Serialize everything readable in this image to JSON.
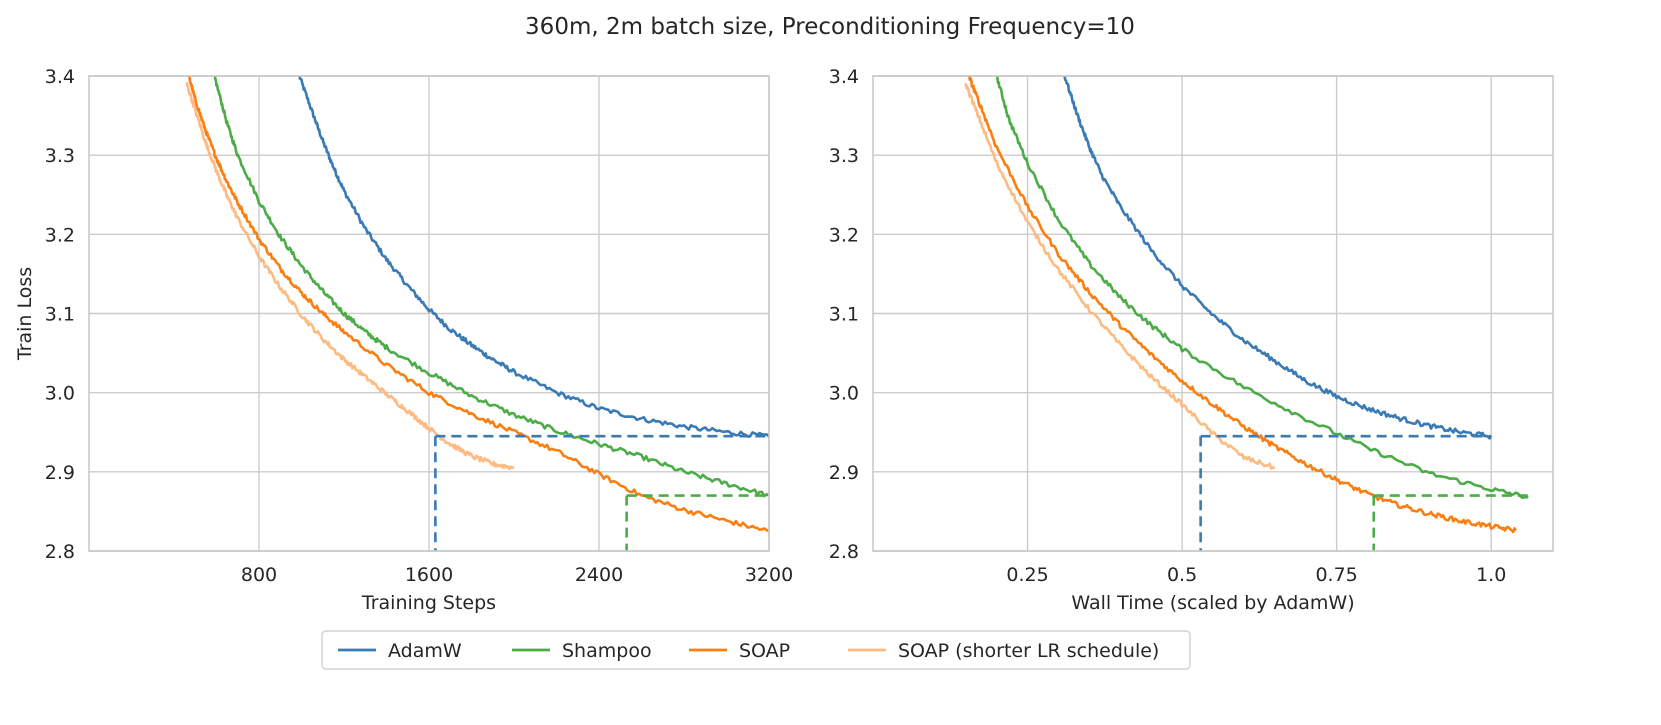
{
  "figure": {
    "title": "360m, 2m batch size, Preconditioning Frequency=10"
  },
  "colors": {
    "AdamW": "#3a7ab5",
    "Shampoo": "#4cac47",
    "SOAP": "#fb7e10",
    "SOAP (shorter LR schedule)": "#fdbb82",
    "grid": "#cccccc",
    "frame": "#c9c9c9"
  },
  "legend": {
    "items": [
      "AdamW",
      "Shampoo",
      "SOAP",
      "SOAP (shorter LR schedule)"
    ],
    "placement": "bottom-center"
  },
  "chart_data": [
    {
      "type": "line",
      "xlabel": "Training Steps",
      "ylabel": "Train Loss",
      "xlim": [
        0,
        3200
      ],
      "ylim": [
        2.8,
        3.4
      ],
      "xticks": [
        800,
        1600,
        2400,
        3200
      ],
      "xtick_labels": [
        "800",
        "1600",
        "2400",
        "3200"
      ],
      "yticks": [
        2.8,
        2.9,
        3.0,
        3.1,
        3.2,
        3.3,
        3.4
      ],
      "ytick_labels": [
        "2.8",
        "2.9",
        "3.0",
        "3.1",
        "3.2",
        "3.3",
        "3.4"
      ],
      "grid": true,
      "series": [
        {
          "name": "AdamW",
          "x": [
            990,
            1050,
            1100,
            1150,
            1200,
            1300,
            1400,
            1500,
            1600,
            1700,
            1800,
            1900,
            2000,
            2200,
            2400,
            2600,
            2800,
            3000,
            3200
          ],
          "y": [
            3.4,
            3.355,
            3.318,
            3.285,
            3.255,
            3.207,
            3.168,
            3.135,
            3.105,
            3.08,
            3.06,
            3.042,
            3.026,
            3.0,
            2.98,
            2.967,
            2.957,
            2.95,
            2.945
          ]
        },
        {
          "name": "Shampoo",
          "x": [
            590,
            650,
            700,
            800,
            900,
            1000,
            1100,
            1200,
            1300,
            1400,
            1600,
            1800,
            2000,
            2200,
            2400,
            2600,
            2800,
            3000,
            3200
          ],
          "y": [
            3.4,
            3.34,
            3.3,
            3.242,
            3.197,
            3.16,
            3.128,
            3.1,
            3.077,
            3.057,
            3.025,
            2.996,
            2.972,
            2.952,
            2.935,
            2.919,
            2.9,
            2.885,
            2.87
          ]
        },
        {
          "name": "SOAP",
          "x": [
            470,
            500,
            550,
            600,
            650,
            700,
            800,
            900,
            1000,
            1100,
            1200,
            1400,
            1600,
            1800,
            2000,
            2200,
            2400,
            2600,
            2800,
            3000,
            3200
          ],
          "y": [
            3.4,
            3.37,
            3.33,
            3.296,
            3.266,
            3.24,
            3.194,
            3.157,
            3.126,
            3.1,
            3.077,
            3.035,
            3.0,
            2.973,
            2.95,
            2.926,
            2.897,
            2.87,
            2.852,
            2.838,
            2.825
          ]
        },
        {
          "name": "SOAP (shorter LR schedule)",
          "x": [
            460,
            500,
            550,
            600,
            650,
            700,
            800,
            900,
            1000,
            1100,
            1200,
            1300,
            1400,
            1500,
            1600,
            1700,
            1800,
            1900,
            2000
          ],
          "y": [
            3.39,
            3.357,
            3.315,
            3.28,
            3.248,
            3.22,
            3.172,
            3.133,
            3.098,
            3.068,
            3.042,
            3.02,
            2.998,
            2.977,
            2.955,
            2.935,
            2.92,
            2.91,
            2.905
          ]
        }
      ],
      "reference_lines": [
        {
          "series": "AdamW",
          "x_start": 1630,
          "x_end": 3200,
          "y": 2.945
        },
        {
          "series": "Shampoo",
          "x_start": 2530,
          "x_end": 3200,
          "y": 2.87
        }
      ]
    },
    {
      "type": "line",
      "xlabel": "Wall Time (scaled by AdamW)",
      "ylabel": "",
      "xlim": [
        0,
        1.1
      ],
      "ylim": [
        2.8,
        3.4
      ],
      "xticks": [
        0.25,
        0.5,
        0.75,
        1.0
      ],
      "xtick_labels": [
        "0.25",
        "0.5",
        "0.75",
        "1.0"
      ],
      "yticks": [
        2.8,
        2.9,
        3.0,
        3.1,
        3.2,
        3.3,
        3.4
      ],
      "ytick_labels": [
        "2.8",
        "2.9",
        "3.0",
        "3.1",
        "3.2",
        "3.3",
        "3.4"
      ],
      "grid": true,
      "series": [
        {
          "name": "AdamW",
          "x": [
            0.31,
            0.33,
            0.35,
            0.37,
            0.4,
            0.45,
            0.5,
            0.55,
            0.6,
            0.65,
            0.7,
            0.75,
            0.8,
            0.85,
            0.9,
            0.95,
            1.0
          ],
          "y": [
            3.4,
            3.352,
            3.31,
            3.275,
            3.235,
            3.18,
            3.135,
            3.098,
            3.066,
            3.04,
            3.015,
            2.995,
            2.98,
            2.968,
            2.958,
            2.95,
            2.945
          ]
        },
        {
          "name": "Shampoo",
          "x": [
            0.2,
            0.22,
            0.25,
            0.3,
            0.35,
            0.4,
            0.45,
            0.5,
            0.6,
            0.7,
            0.8,
            0.9,
            1.0,
            1.06
          ],
          "y": [
            3.4,
            3.345,
            3.29,
            3.218,
            3.163,
            3.12,
            3.085,
            3.055,
            3.007,
            2.967,
            2.93,
            2.898,
            2.878,
            2.868
          ]
        },
        {
          "name": "SOAP",
          "x": [
            0.155,
            0.17,
            0.2,
            0.25,
            0.3,
            0.35,
            0.4,
            0.45,
            0.5,
            0.55,
            0.6,
            0.65,
            0.7,
            0.75,
            0.8,
            0.85,
            0.9,
            0.95,
            1.0,
            1.04
          ],
          "y": [
            3.4,
            3.37,
            3.31,
            3.235,
            3.175,
            3.127,
            3.085,
            3.048,
            3.015,
            2.985,
            2.957,
            2.932,
            2.91,
            2.89,
            2.872,
            2.858,
            2.847,
            2.838,
            2.831,
            2.826
          ]
        },
        {
          "name": "SOAP (shorter LR schedule)",
          "x": [
            0.15,
            0.17,
            0.2,
            0.25,
            0.3,
            0.35,
            0.4,
            0.45,
            0.5,
            0.55,
            0.6,
            0.65
          ],
          "y": [
            3.39,
            3.35,
            3.29,
            3.215,
            3.155,
            3.105,
            3.06,
            3.02,
            2.985,
            2.948,
            2.918,
            2.905
          ]
        }
      ],
      "reference_lines": [
        {
          "series": "AdamW",
          "x_start": 0.53,
          "x_end": 1.0,
          "y": 2.945
        },
        {
          "series": "Shampoo",
          "x_start": 0.81,
          "x_end": 1.06,
          "y": 2.87
        }
      ]
    }
  ]
}
